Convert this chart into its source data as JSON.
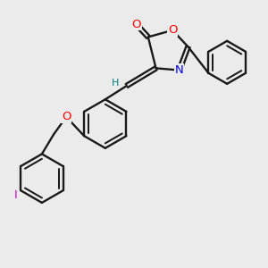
{
  "background_color": "#ebebeb",
  "bond_color": "#1a1a1a",
  "atom_colors": {
    "O": "#ff0000",
    "N": "#0000ee",
    "I": "#cc00cc",
    "H": "#008080",
    "C": "#1a1a1a"
  },
  "figsize": [
    3.0,
    3.0
  ],
  "dpi": 100
}
